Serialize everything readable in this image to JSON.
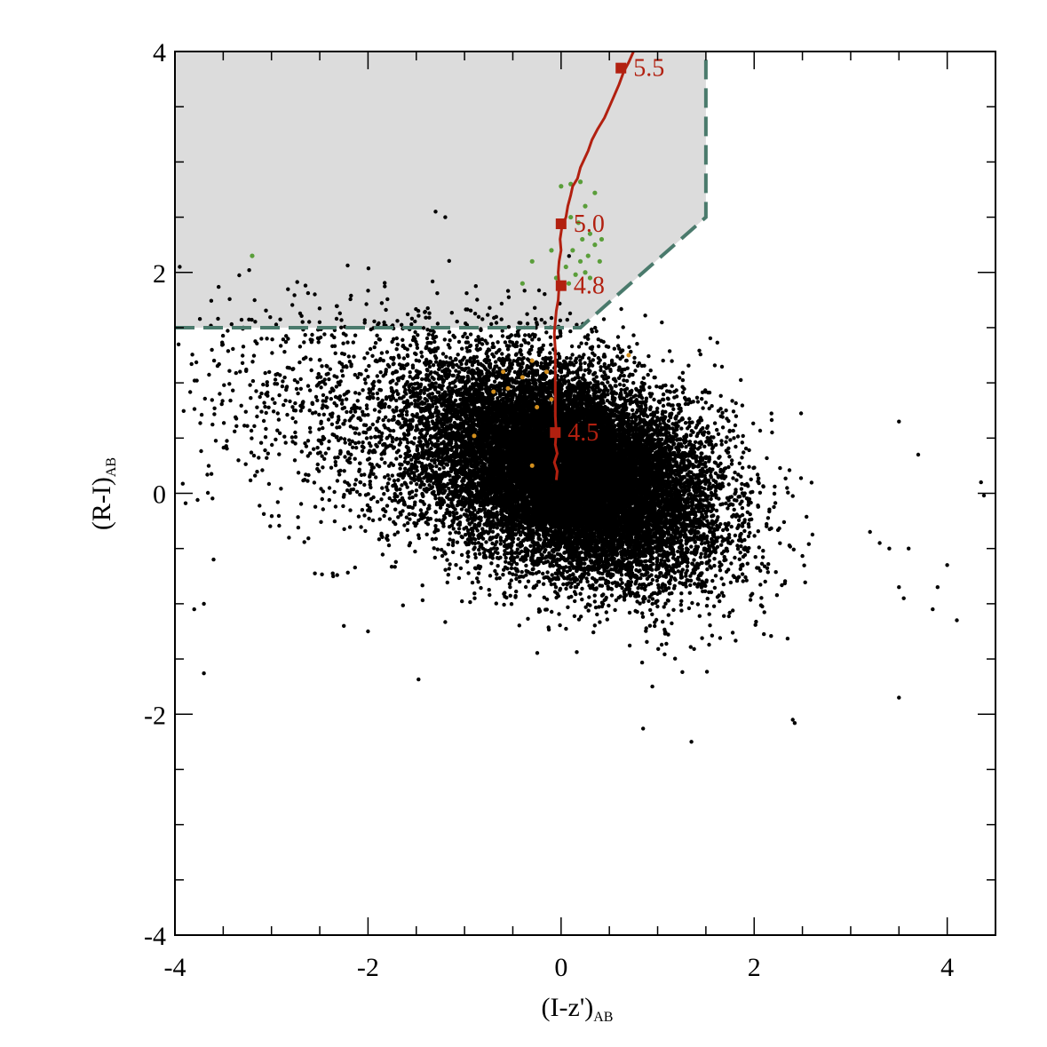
{
  "chart_data": {
    "type": "scatter",
    "xlabel": "(I-z')",
    "xlabel_sub": "AB",
    "ylabel": "(R-I)",
    "ylabel_sub": "AB",
    "xlim": [
      -4,
      4.5
    ],
    "ylim": [
      -4,
      4
    ],
    "x_ticks": [
      -4,
      -2,
      0,
      2,
      4
    ],
    "x_tick_labels": [
      "-4",
      "-2",
      "0",
      "2",
      "4"
    ],
    "y_ticks": [
      -4,
      -2,
      0,
      2,
      4
    ],
    "y_tick_labels": [
      "-4",
      "-2",
      "0",
      "2",
      "4"
    ],
    "grid": false,
    "colors": {
      "axes": "#000000",
      "field_points": "#000000",
      "selection_region": "#dcdcdc",
      "selection_boundary": "#4a7a6c",
      "track": "#b22010",
      "green_points": "#5a9e3a",
      "orange_points": "#d4901e"
    },
    "selection_region": {
      "vertices": [
        [
          -4,
          4
        ],
        [
          1.5,
          4
        ],
        [
          1.5,
          2.5
        ],
        [
          0.2,
          1.5
        ],
        [
          -4,
          1.5
        ]
      ]
    },
    "track": {
      "points": [
        [
          -0.05,
          0.12
        ],
        [
          -0.04,
          0.2
        ],
        [
          -0.07,
          0.28
        ],
        [
          -0.04,
          0.36
        ],
        [
          -0.06,
          0.44
        ],
        [
          -0.05,
          0.55
        ],
        [
          -0.06,
          0.7
        ],
        [
          -0.06,
          0.9
        ],
        [
          -0.06,
          1.1
        ],
        [
          -0.06,
          1.3
        ],
        [
          -0.07,
          1.45
        ],
        [
          -0.06,
          1.55
        ],
        [
          -0.05,
          1.65
        ],
        [
          -0.03,
          1.75
        ],
        [
          -0.02,
          1.88
        ],
        [
          -0.03,
          2.0
        ],
        [
          -0.02,
          2.1
        ],
        [
          0.0,
          2.2
        ],
        [
          -0.01,
          2.3
        ],
        [
          0.01,
          2.42
        ],
        [
          0.05,
          2.5
        ],
        [
          0.07,
          2.6
        ],
        [
          0.1,
          2.7
        ],
        [
          0.12,
          2.78
        ],
        [
          0.17,
          2.85
        ],
        [
          0.2,
          2.95
        ],
        [
          0.28,
          3.1
        ],
        [
          0.32,
          3.2
        ],
        [
          0.38,
          3.3
        ],
        [
          0.45,
          3.4
        ],
        [
          0.5,
          3.5
        ],
        [
          0.55,
          3.6
        ],
        [
          0.6,
          3.7
        ],
        [
          0.65,
          3.82
        ],
        [
          0.7,
          3.9
        ],
        [
          0.75,
          4.0
        ]
      ],
      "markers": [
        {
          "x": -0.06,
          "y": 0.55,
          "label": "4.5"
        },
        {
          "x": 0.0,
          "y": 1.88,
          "label": "4.8"
        },
        {
          "x": 0.0,
          "y": 2.44,
          "label": "5.0"
        },
        {
          "x": 0.62,
          "y": 3.85,
          "label": "5.5"
        }
      ]
    },
    "series": [
      {
        "points": [
          [
            0.0,
            2.78
          ],
          [
            0.1,
            2.8
          ],
          [
            0.2,
            2.82
          ],
          [
            0.25,
            2.6
          ],
          [
            0.35,
            2.72
          ],
          [
            0.1,
            2.5
          ],
          [
            0.18,
            2.45
          ],
          [
            0.22,
            2.3
          ],
          [
            0.3,
            2.35
          ],
          [
            0.12,
            2.2
          ],
          [
            0.2,
            2.1
          ],
          [
            0.28,
            2.15
          ],
          [
            0.35,
            2.25
          ],
          [
            0.05,
            2.05
          ],
          [
            0.15,
            1.98
          ],
          [
            0.3,
            1.95
          ],
          [
            0.4,
            2.1
          ],
          [
            -0.05,
            1.95
          ],
          [
            0.08,
            1.9
          ],
          [
            -0.1,
            2.2
          ],
          [
            -0.3,
            2.1
          ],
          [
            -0.4,
            1.9
          ],
          [
            -3.2,
            2.15
          ],
          [
            0.25,
            2.0
          ],
          [
            0.42,
            2.3
          ]
        ]
      },
      {
        "points": [
          [
            -0.7,
            0.92
          ],
          [
            -0.55,
            0.95
          ],
          [
            -0.4,
            1.05
          ],
          [
            -0.3,
            1.2
          ],
          [
            -0.15,
            1.1
          ],
          [
            -0.25,
            0.78
          ],
          [
            -0.1,
            0.85
          ],
          [
            -0.9,
            0.52
          ],
          [
            -0.3,
            0.25
          ],
          [
            0.7,
            1.25
          ],
          [
            -0.6,
            1.1
          ]
        ]
      }
    ],
    "field_population": {
      "center": [
        0.1,
        0.2
      ],
      "main_cloud_density": "very dense",
      "extent_x": [
        -4,
        4.4
      ],
      "extent_y": [
        -2.3,
        2.6
      ],
      "outliers": [
        [
          3.7,
          0.35
        ],
        [
          3.5,
          0.65
        ],
        [
          4.35,
          0.1
        ],
        [
          4.38,
          -0.02
        ],
        [
          3.2,
          -0.35
        ],
        [
          3.3,
          -0.45
        ],
        [
          3.4,
          -0.5
        ],
        [
          3.6,
          -0.5
        ],
        [
          4.0,
          -0.65
        ],
        [
          3.5,
          -0.85
        ],
        [
          3.55,
          -0.95
        ],
        [
          3.9,
          -0.85
        ],
        [
          3.85,
          -1.05
        ],
        [
          4.1,
          -1.15
        ],
        [
          3.5,
          -1.85
        ],
        [
          2.4,
          -2.05
        ],
        [
          2.42,
          -2.08
        ],
        [
          1.35,
          -2.25
        ],
        [
          0.85,
          -2.13
        ],
        [
          -3.7,
          -1.63
        ],
        [
          -3.8,
          -1.05
        ],
        [
          -3.7,
          -1.0
        ],
        [
          -3.6,
          -0.6
        ],
        [
          -2.0,
          -1.25
        ],
        [
          -2.25,
          -1.2
        ],
        [
          -3.95,
          2.05
        ],
        [
          -1.3,
          2.55
        ],
        [
          -1.2,
          2.5
        ]
      ]
    }
  }
}
